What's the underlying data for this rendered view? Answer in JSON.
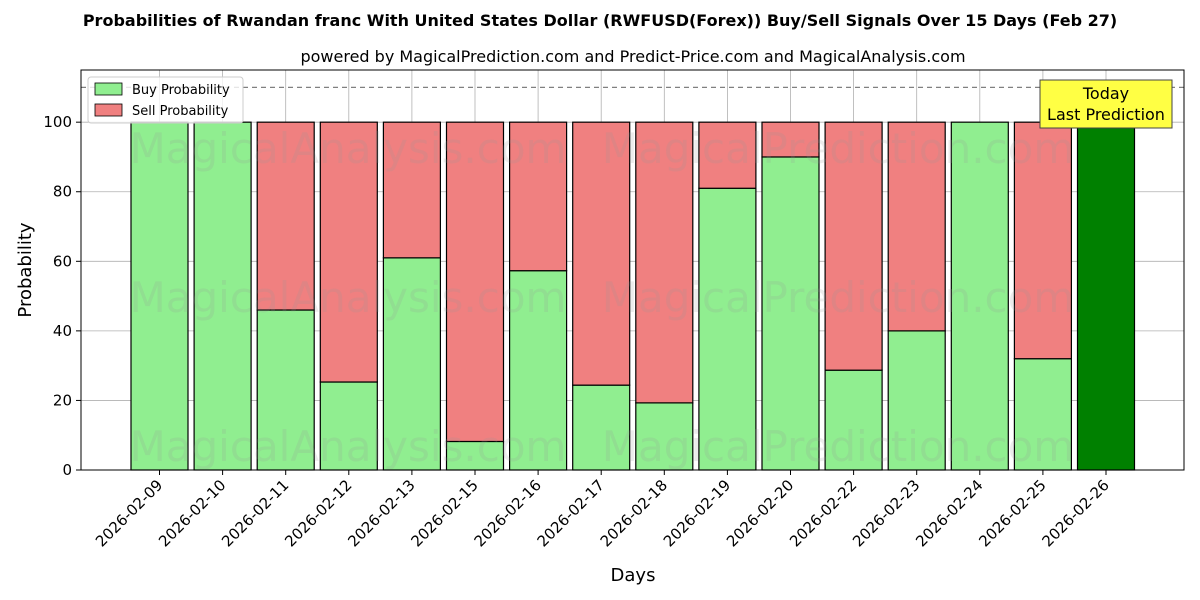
{
  "title": "Probabilities of Rwandan franc With United States Dollar (RWFUSD(Forex)) Buy/Sell Signals Over 15 Days (Feb 27)",
  "subtitle": "powered by MagicalPrediction.com and Predict-Price.com and MagicalAnalysis.com",
  "watermarks": [
    "MagicalAnalysis.com",
    "MagicalPrediction.com"
  ],
  "today_label": [
    "Today",
    "Last Prediction"
  ],
  "colors": {
    "buy": "#90ee90",
    "sell": "#f08080",
    "today": "#008000",
    "today_box": "#ffff44"
  },
  "chart_data": {
    "type": "bar",
    "stacked": true,
    "xlabel": "Days",
    "ylabel": "Probability",
    "ylim": [
      0,
      115
    ],
    "yticks": [
      0,
      20,
      40,
      60,
      80,
      100
    ],
    "reference_line": 110,
    "grid": true,
    "legend_position": "top-left",
    "categories": [
      "2026-02-09",
      "2026-02-10",
      "2026-02-11",
      "2026-02-12",
      "2026-02-13",
      "2026-02-15",
      "2026-02-16",
      "2026-02-17",
      "2026-02-18",
      "2026-02-19",
      "2026-02-20",
      "2026-02-22",
      "2026-02-23",
      "2026-02-24",
      "2026-02-25",
      "2026-02-26"
    ],
    "series": [
      {
        "name": "Buy Probability",
        "values": [
          100,
          100,
          46,
          25.3,
          61,
          8.2,
          57.3,
          24.4,
          19.3,
          81,
          90,
          28.7,
          40,
          100,
          32,
          100
        ]
      },
      {
        "name": "Sell Probability",
        "values": [
          0,
          0,
          54,
          74.7,
          39,
          91.8,
          42.7,
          75.6,
          80.7,
          19,
          10,
          71.3,
          60,
          0,
          68,
          0
        ]
      }
    ]
  }
}
